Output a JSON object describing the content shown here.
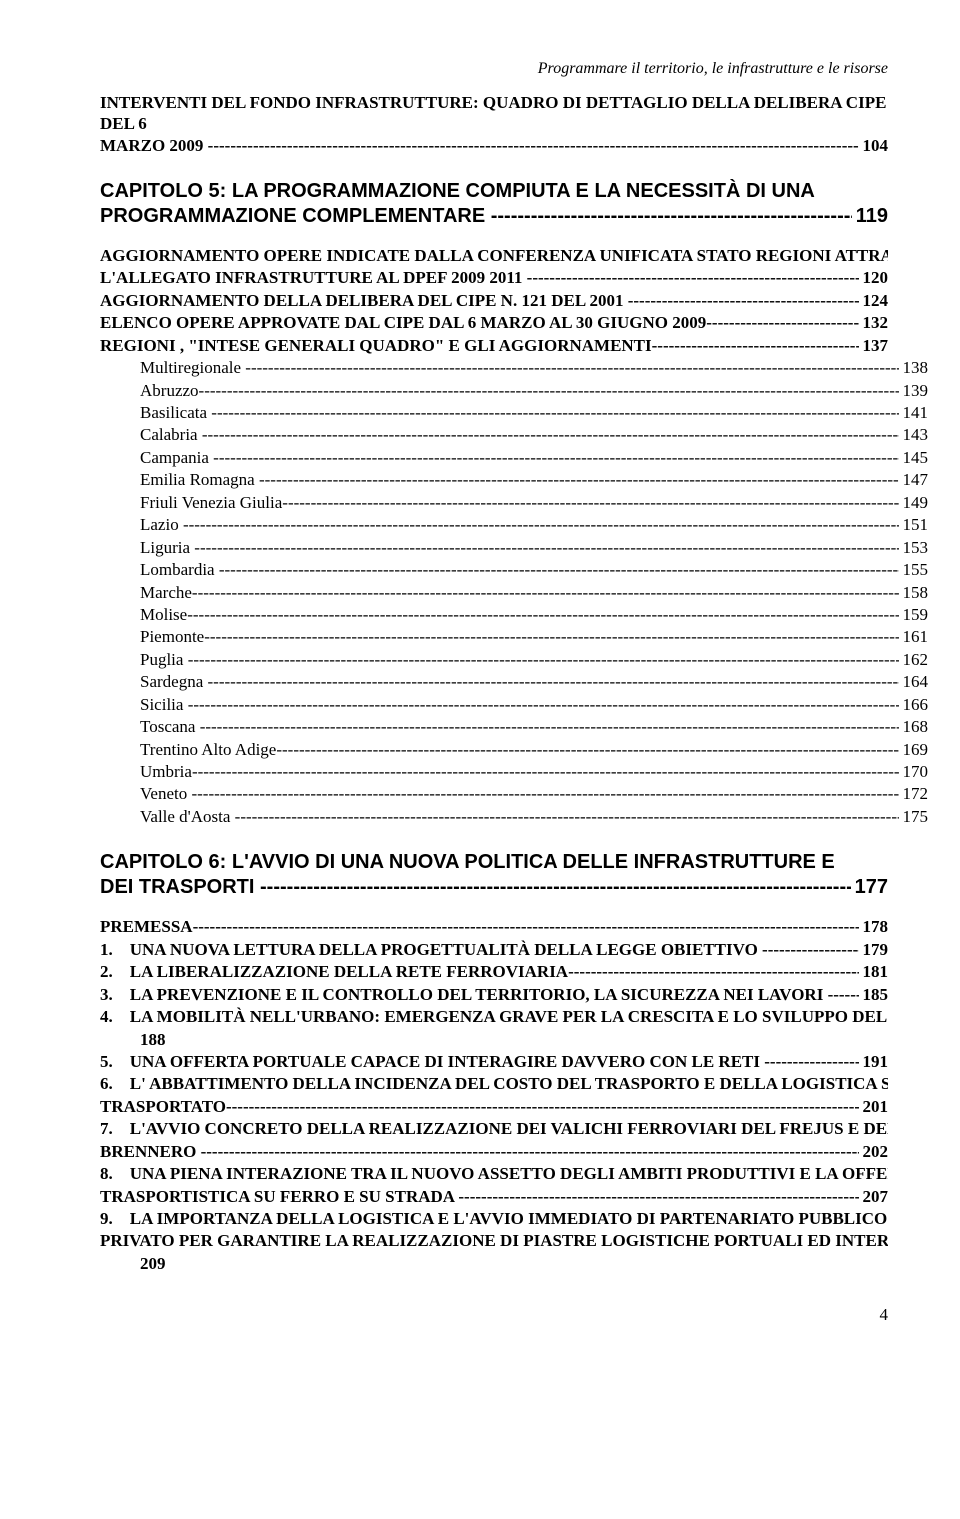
{
  "running_header": "Programmare il territorio, le infrastrutture e le risorse",
  "sec1": {
    "line1": "INTERVENTI DEL FONDO INFRASTRUTTURE: QUADRO DI DETTAGLIO DELLA DELIBERA CIPE DEL 6",
    "line2_label": "MARZO 2009 ",
    "line2_page": " 104"
  },
  "chapter5": {
    "line1": "CAPITOLO 5: LA PROGRAMMAZIONE COMPIUTA E LA NECESSITÀ DI UNA",
    "line2_label": "PROGRAMMAZIONE COMPLEMENTARE ",
    "line2_page": " 119"
  },
  "ch5_items": [
    {
      "style": "sc",
      "label": "AGGIORNAMENTO OPERE INDICATE DALLA CONFERENZA UNIFICATA STATO REGIONI ATTRAVERSO",
      "nopage": true
    },
    {
      "style": "sc",
      "label": "L'ALLEGATO INFRASTRUTTURE AL DPEF 2009 2011 ",
      "page": " 120"
    },
    {
      "style": "sc",
      "label": "AGGIORNAMENTO DELLA DELIBERA DEL CIPE N. 121 DEL 2001 ",
      "page": " 124"
    },
    {
      "style": "sc",
      "label": "ELENCO OPERE APPROVATE DAL CIPE DAL 6 MARZO AL 30 GIUGNO 2009",
      "page": " 132"
    },
    {
      "style": "sc",
      "label": "REGIONI , \"INTESE GENERALI QUADRO\" E GLI AGGIORNAMENTI",
      "page": " 137"
    },
    {
      "style": "reg",
      "indent": true,
      "label": "Multiregionale ",
      "page": " 138"
    },
    {
      "style": "reg",
      "indent": true,
      "label": "Abruzzo",
      "page": " 139"
    },
    {
      "style": "reg",
      "indent": true,
      "label": "Basilicata ",
      "page": " 141"
    },
    {
      "style": "reg",
      "indent": true,
      "label": "Calabria ",
      "page": " 143"
    },
    {
      "style": "reg",
      "indent": true,
      "label": "Campania ",
      "page": " 145"
    },
    {
      "style": "reg",
      "indent": true,
      "label": "Emilia Romagna ",
      "page": " 147"
    },
    {
      "style": "reg",
      "indent": true,
      "label": "Friuli Venezia Giulia",
      "page": " 149"
    },
    {
      "style": "reg",
      "indent": true,
      "label": "Lazio ",
      "page": " 151"
    },
    {
      "style": "reg",
      "indent": true,
      "label": "Liguria ",
      "page": " 153"
    },
    {
      "style": "reg",
      "indent": true,
      "label": "Lombardia ",
      "page": " 155"
    },
    {
      "style": "reg",
      "indent": true,
      "label": "Marche",
      "page": " 158"
    },
    {
      "style": "reg",
      "indent": true,
      "label": "Molise",
      "page": " 159"
    },
    {
      "style": "reg",
      "indent": true,
      "label": "Piemonte",
      "page": " 161"
    },
    {
      "style": "reg",
      "indent": true,
      "label": "Puglia ",
      "page": " 162"
    },
    {
      "style": "reg",
      "indent": true,
      "label": "Sardegna ",
      "page": " 164"
    },
    {
      "style": "reg",
      "indent": true,
      "label": "Sicilia ",
      "page": " 166"
    },
    {
      "style": "reg",
      "indent": true,
      "label": "Toscana ",
      "page": " 168"
    },
    {
      "style": "reg",
      "indent": true,
      "label": "Trentino Alto Adige",
      "page": " 169"
    },
    {
      "style": "reg",
      "indent": true,
      "label": "Umbria",
      "page": " 170"
    },
    {
      "style": "reg",
      "indent": true,
      "label": "Veneto ",
      "page": " 172"
    },
    {
      "style": "reg",
      "indent": true,
      "label": "Valle d'Aosta ",
      "page": " 175"
    }
  ],
  "chapter6": {
    "line1": "CAPITOLO 6: L'AVVIO DI UNA NUOVA POLITICA DELLE INFRASTRUTTURE E",
    "line2_label": "DEI TRASPORTI ",
    "line2_page": " 177"
  },
  "ch6_items": [
    {
      "label": "PREMESSA",
      "page": " 178"
    },
    {
      "num": "1.",
      "label": "UNA NUOVA LETTURA DELLA PROGETTUALITÀ DELLA LEGGE OBIETTIVO ",
      "page": " 179"
    },
    {
      "num": "2.",
      "label": "LA LIBERALIZZAZIONE DELLA RETE FERROVIARIA",
      "page": " 181"
    },
    {
      "num": "3.",
      "label": "LA PREVENZIONE E IL CONTROLLO DEL TERRITORIO, LA SICUREZZA NEI LAVORI ",
      "page": " 185"
    },
    {
      "num": "4.",
      "label": "LA MOBILITÀ NELL'URBANO: EMERGENZA GRAVE PER LA CRESCITA E LO SVILUPPO DEL PAESE",
      "nopage": true,
      "cont": "188"
    },
    {
      "num": "5.",
      "label": "UNA OFFERTA PORTUALE CAPACE DI INTERAGIRE DAVVERO CON LE RETI ",
      "page": " 191"
    },
    {
      "num": "6.",
      "label": "L' ABBATTIMENTO DELLA INCIDENZA DEL COSTO DEL TRASPORTO E DELLA LOGISTICA SUL",
      "nopage": true
    },
    {
      "label": "TRASPORTATO",
      "page": " 201",
      "noindent": true
    },
    {
      "num": "7.",
      "label": "L'AVVIO CONCRETO DELLA REALIZZAZIONE DEI VALICHI FERROVIARI DEL FREJUS E DEL",
      "nopage": true
    },
    {
      "label": "BRENNERO ",
      "page": " 202",
      "noindent": true
    },
    {
      "num": "8.",
      "label": "UNA PIENA INTERAZIONE TRA IL NUOVO ASSETTO DEGLI AMBITI PRODUTTIVI E LA OFFERTA",
      "nopage": true
    },
    {
      "label": "TRASPORTISTICA SU FERRO E SU STRADA ",
      "page": " 207",
      "noindent": true
    },
    {
      "num": "9.",
      "label": "LA IMPORTANZA DELLA LOGISTICA E L'AVVIO IMMEDIATO DI PARTENARIATO PUBBLICO",
      "nopage": true
    },
    {
      "label": "PRIVATO PER GARANTIRE LA REALIZZAZIONE DI PIASTRE LOGISTICHE PORTUALI ED INTERPORTUALI.",
      "nopage": true,
      "noindent": true,
      "cont": "209"
    }
  ],
  "footer_page": "4",
  "colors": {
    "text": "#000000",
    "background": "#ffffff"
  },
  "fonts": {
    "body": "Times New Roman",
    "chapter": "Arial",
    "body_size_pt": 13,
    "chapter_size_pt": 15
  }
}
